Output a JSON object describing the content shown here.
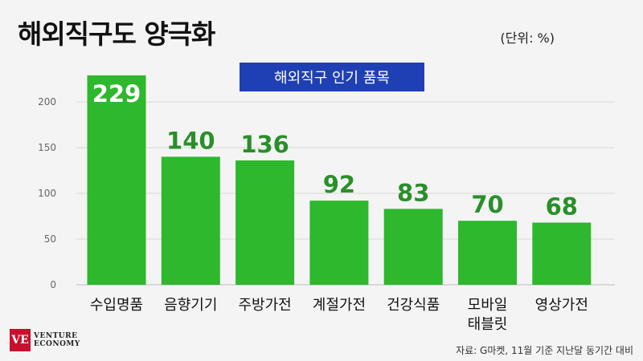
{
  "title": "해외직구도 양극화",
  "unit": "(단위: %)",
  "banner": "해외직구 인기 품목",
  "source": "자료: G마켓, 11월 기준 지난달 동기간 대비",
  "logo": {
    "text_line1": "VENTURE",
    "text_line2": "ECONOMY",
    "mark": "VE"
  },
  "colors": {
    "bar": "#2db82d",
    "value_label": "#2a8f2a",
    "value_label_on_bar": "#ffffff",
    "banner": "#1f3fb4",
    "grid": "#d8d8d8"
  },
  "chart_data": {
    "type": "bar",
    "categories": [
      "수입명품",
      "음향기기",
      "주방가전",
      "계절가전",
      "건강식품",
      "모바일\n태블릿",
      "영상가전"
    ],
    "values": [
      229,
      140,
      136,
      92,
      83,
      70,
      68
    ],
    "yticks": [
      0,
      50,
      100,
      150,
      200
    ],
    "ylim": [
      0,
      250
    ],
    "grid": true,
    "title": "해외직구 인기 품목",
    "xlabel": "",
    "ylabel": "",
    "unit": "%"
  }
}
